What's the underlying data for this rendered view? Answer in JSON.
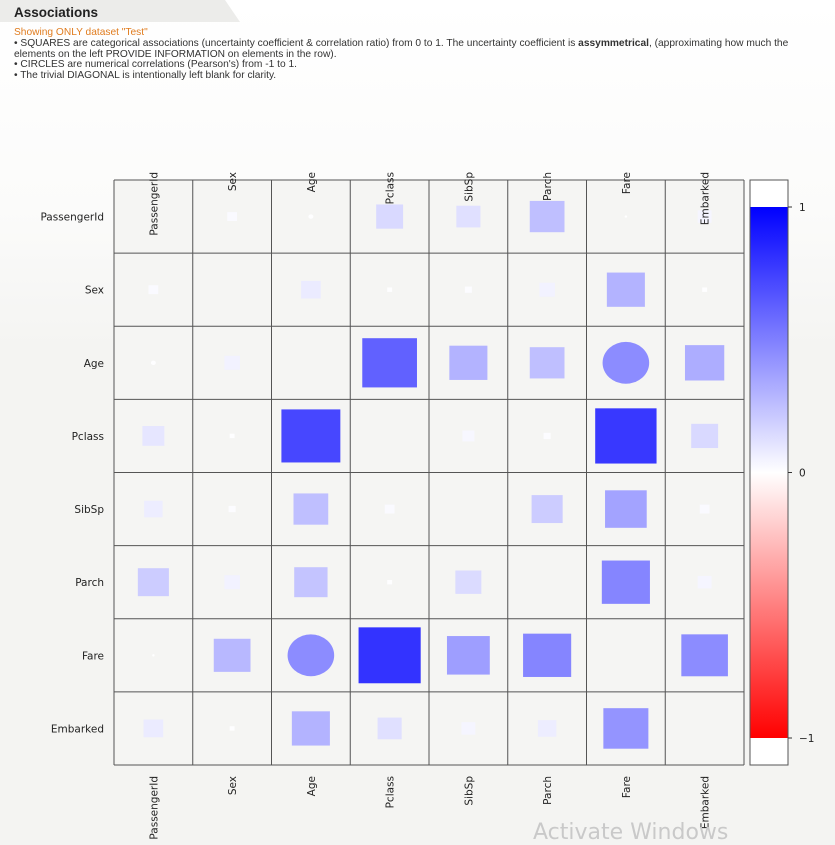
{
  "panel": {
    "title": "Associations",
    "subtitle": "Showing ONLY dataset \"Test\"",
    "notes": [
      {
        "pre": "• SQUARES are categorical associations (uncertainty coefficient & correlation ratio) from 0 to 1. The uncertainty coefficient is ",
        "bold": "assymmetrical",
        "post": ", (approximating how much the elements on the left PROVIDE INFORMATION on elements in the row)."
      },
      {
        "pre": "• CIRCLES are numerical correlations (Pearson's) from -1 to 1.",
        "bold": "",
        "post": ""
      },
      {
        "pre": "• The trivial DIAGONAL is intentionally left blank for clarity.",
        "bold": "",
        "post": ""
      }
    ]
  },
  "watermark": "Activate Windows",
  "colors": {
    "positive": "#0000ff",
    "zero": "#ffffff",
    "negative": "#ff0000",
    "grid": "#555555",
    "cell_bg": "#f5f5f3"
  },
  "chart_data": {
    "type": "heatmap",
    "variables": [
      "PassengerId",
      "Sex",
      "Age",
      "Pclass",
      "SibSp",
      "Parch",
      "Fare",
      "Embarked"
    ],
    "colorbar": {
      "min": -1,
      "max": 1,
      "ticks": [
        1,
        0,
        -1
      ],
      "tick_labels": [
        "1",
        "0",
        "−1"
      ]
    },
    "cells": [
      {
        "row": "PassengerId",
        "col": "Sex",
        "value": 0.02,
        "shape": "square"
      },
      {
        "row": "PassengerId",
        "col": "Age",
        "value": 0.005,
        "shape": "circle"
      },
      {
        "row": "PassengerId",
        "col": "Pclass",
        "value": 0.15,
        "shape": "square"
      },
      {
        "row": "PassengerId",
        "col": "SibSp",
        "value": 0.12,
        "shape": "square"
      },
      {
        "row": "PassengerId",
        "col": "Parch",
        "value": 0.25,
        "shape": "square"
      },
      {
        "row": "PassengerId",
        "col": "Fare",
        "value": 0.0,
        "shape": "circle"
      },
      {
        "row": "PassengerId",
        "col": "Embarked",
        "value": 0.04,
        "shape": "square"
      },
      {
        "row": "Sex",
        "col": "PassengerId",
        "value": 0.02,
        "shape": "square"
      },
      {
        "row": "Sex",
        "col": "Age",
        "value": 0.08,
        "shape": "square"
      },
      {
        "row": "Sex",
        "col": "Pclass",
        "value": 0.005,
        "shape": "square"
      },
      {
        "row": "Sex",
        "col": "SibSp",
        "value": 0.01,
        "shape": "square"
      },
      {
        "row": "Sex",
        "col": "Parch",
        "value": 0.05,
        "shape": "square"
      },
      {
        "row": "Sex",
        "col": "Fare",
        "value": 0.3,
        "shape": "square"
      },
      {
        "row": "Sex",
        "col": "Embarked",
        "value": 0.005,
        "shape": "square"
      },
      {
        "row": "Age",
        "col": "PassengerId",
        "value": 0.005,
        "shape": "circle"
      },
      {
        "row": "Age",
        "col": "Sex",
        "value": 0.05,
        "shape": "square"
      },
      {
        "row": "Age",
        "col": "Pclass",
        "value": 0.62,
        "shape": "square"
      },
      {
        "row": "Age",
        "col": "SibSp",
        "value": 0.3,
        "shape": "square"
      },
      {
        "row": "Age",
        "col": "Parch",
        "value": 0.25,
        "shape": "square"
      },
      {
        "row": "Age",
        "col": "Fare",
        "value": 0.45,
        "shape": "circle"
      },
      {
        "row": "Age",
        "col": "Embarked",
        "value": 0.32,
        "shape": "square"
      },
      {
        "row": "Pclass",
        "col": "PassengerId",
        "value": 0.1,
        "shape": "square"
      },
      {
        "row": "Pclass",
        "col": "Sex",
        "value": 0.005,
        "shape": "square"
      },
      {
        "row": "Pclass",
        "col": "Age",
        "value": 0.72,
        "shape": "square"
      },
      {
        "row": "Pclass",
        "col": "SibSp",
        "value": 0.03,
        "shape": "square"
      },
      {
        "row": "Pclass",
        "col": "Parch",
        "value": 0.01,
        "shape": "square"
      },
      {
        "row": "Pclass",
        "col": "Fare",
        "value": 0.78,
        "shape": "square"
      },
      {
        "row": "Pclass",
        "col": "Embarked",
        "value": 0.15,
        "shape": "square"
      },
      {
        "row": "SibSp",
        "col": "PassengerId",
        "value": 0.07,
        "shape": "square"
      },
      {
        "row": "SibSp",
        "col": "Sex",
        "value": 0.01,
        "shape": "square"
      },
      {
        "row": "SibSp",
        "col": "Age",
        "value": 0.25,
        "shape": "square"
      },
      {
        "row": "SibSp",
        "col": "Pclass",
        "value": 0.02,
        "shape": "square"
      },
      {
        "row": "SibSp",
        "col": "Parch",
        "value": 0.2,
        "shape": "square"
      },
      {
        "row": "SibSp",
        "col": "Fare",
        "value": 0.36,
        "shape": "square"
      },
      {
        "row": "SibSp",
        "col": "Embarked",
        "value": 0.02,
        "shape": "square"
      },
      {
        "row": "Parch",
        "col": "PassengerId",
        "value": 0.2,
        "shape": "square"
      },
      {
        "row": "Parch",
        "col": "Sex",
        "value": 0.05,
        "shape": "square"
      },
      {
        "row": "Parch",
        "col": "Age",
        "value": 0.23,
        "shape": "square"
      },
      {
        "row": "Parch",
        "col": "Pclass",
        "value": 0.005,
        "shape": "square"
      },
      {
        "row": "Parch",
        "col": "SibSp",
        "value": 0.14,
        "shape": "square"
      },
      {
        "row": "Parch",
        "col": "Fare",
        "value": 0.48,
        "shape": "square"
      },
      {
        "row": "Parch",
        "col": "Embarked",
        "value": 0.04,
        "shape": "square"
      },
      {
        "row": "Fare",
        "col": "PassengerId",
        "value": 0.0,
        "shape": "circle"
      },
      {
        "row": "Fare",
        "col": "Sex",
        "value": 0.28,
        "shape": "square"
      },
      {
        "row": "Fare",
        "col": "Age",
        "value": 0.45,
        "shape": "circle"
      },
      {
        "row": "Fare",
        "col": "Pclass",
        "value": 0.8,
        "shape": "square"
      },
      {
        "row": "Fare",
        "col": "SibSp",
        "value": 0.38,
        "shape": "square"
      },
      {
        "row": "Fare",
        "col": "Parch",
        "value": 0.48,
        "shape": "square"
      },
      {
        "row": "Fare",
        "col": "Embarked",
        "value": 0.45,
        "shape": "square"
      },
      {
        "row": "Embarked",
        "col": "PassengerId",
        "value": 0.08,
        "shape": "square"
      },
      {
        "row": "Embarked",
        "col": "Sex",
        "value": 0.005,
        "shape": "square"
      },
      {
        "row": "Embarked",
        "col": "Age",
        "value": 0.3,
        "shape": "square"
      },
      {
        "row": "Embarked",
        "col": "Pclass",
        "value": 0.12,
        "shape": "square"
      },
      {
        "row": "Embarked",
        "col": "SibSp",
        "value": 0.04,
        "shape": "square"
      },
      {
        "row": "Embarked",
        "col": "Parch",
        "value": 0.07,
        "shape": "square"
      },
      {
        "row": "Embarked",
        "col": "Fare",
        "value": 0.42,
        "shape": "square"
      },
      {
        "row": "Embarked",
        "col": "Embarked",
        "value": null,
        "shape": "none"
      }
    ]
  }
}
